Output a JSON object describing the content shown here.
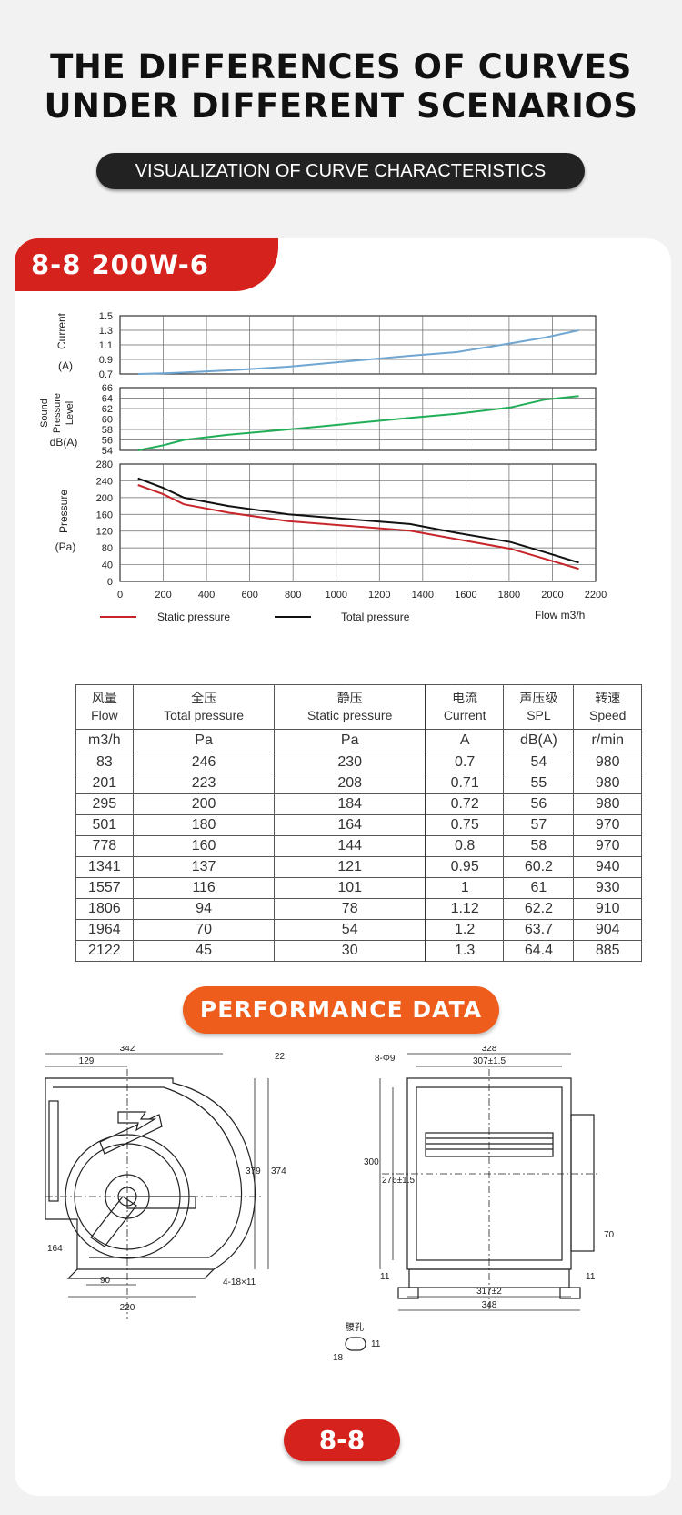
{
  "header": {
    "title_line1": "THE DIFFERENCES OF CURVES",
    "title_line2": "UNDER DIFFERENT SCENARIOS",
    "subtitle": "VISUALIZATION OF CURVE CHARACTERISTICS"
  },
  "card": {
    "model_tag": "8-8  200W-6",
    "performance_label": "PERFORMANCE DATA",
    "size_label": "8-8"
  },
  "chart_data": [
    {
      "type": "line",
      "ylabel": "Current (A)",
      "ylim": [
        0.7,
        1.5
      ],
      "yticks": [
        "1.5",
        "1.3",
        "1.1",
        "0.9",
        "0.7"
      ],
      "x": [
        83,
        201,
        295,
        501,
        778,
        1341,
        1557,
        1806,
        1964,
        2122
      ],
      "series": [
        {
          "name": "Current",
          "values": [
            0.7,
            0.71,
            0.72,
            0.75,
            0.8,
            0.95,
            1,
            1.12,
            1.2,
            1.3
          ],
          "color": "#6fa6d2"
        }
      ]
    },
    {
      "type": "line",
      "ylabel": "Sound Pressure Level dB(A)",
      "ylim": [
        54,
        66
      ],
      "yticks": [
        "66",
        "64",
        "62",
        "60",
        "58",
        "56",
        "54"
      ],
      "x": [
        83,
        201,
        295,
        501,
        778,
        1341,
        1557,
        1806,
        1964,
        2122
      ],
      "series": [
        {
          "name": "SPL",
          "values": [
            54,
            55,
            56,
            57,
            58,
            60.2,
            61,
            62.2,
            63.7,
            64.4
          ],
          "color": "#1fae57"
        }
      ]
    },
    {
      "type": "line",
      "ylabel": "Pressure (Pa)",
      "xlabel": "Flow m3/h",
      "ylim": [
        0,
        280
      ],
      "xlim": [
        0,
        2200
      ],
      "yticks": [
        "280",
        "240",
        "200",
        "160",
        "120",
        "80",
        "40",
        "0"
      ],
      "xticks": [
        "0",
        "200",
        "400",
        "600",
        "800",
        "1000",
        "1200",
        "1400",
        "1600",
        "1800",
        "2000",
        "2200"
      ],
      "x": [
        83,
        201,
        295,
        501,
        778,
        1341,
        1557,
        1806,
        1964,
        2122
      ],
      "series": [
        {
          "name": "Static pressure",
          "values": [
            230,
            208,
            184,
            164,
            144,
            121,
            101,
            78,
            54,
            30
          ],
          "color": "#c8252b"
        },
        {
          "name": "Total pressure",
          "values": [
            246,
            223,
            200,
            180,
            160,
            137,
            116,
            94,
            70,
            45
          ],
          "color": "#111111"
        }
      ]
    },
    {
      "type": "table",
      "headers": [
        {
          "cn": "风量",
          "en": "Flow"
        },
        {
          "cn": "全压",
          "en": "Total pressure"
        },
        {
          "cn": "静压",
          "en": "Static pressure"
        },
        {
          "cn": "电流",
          "en": "Current"
        },
        {
          "cn": "声压级",
          "en": "SPL"
        },
        {
          "cn": "转速",
          "en": "Speed"
        }
      ],
      "units": [
        "m3/h",
        "Pa",
        "Pa",
        "A",
        "dB(A)",
        "r/min"
      ],
      "rows": [
        [
          "83",
          "246",
          "230",
          "0.7",
          "54",
          "980"
        ],
        [
          "201",
          "223",
          "208",
          "0.71",
          "55",
          "980"
        ],
        [
          "295",
          "200",
          "184",
          "0.72",
          "56",
          "980"
        ],
        [
          "501",
          "180",
          "164",
          "0.75",
          "57",
          "970"
        ],
        [
          "778",
          "160",
          "144",
          "0.8",
          "58",
          "970"
        ],
        [
          "1341",
          "137",
          "121",
          "0.95",
          "60.2",
          "940"
        ],
        [
          "1557",
          "116",
          "101",
          "1",
          "61",
          "930"
        ],
        [
          "1806",
          "94",
          "78",
          "1.12",
          "62.2",
          "910"
        ],
        [
          "1964",
          "70",
          "54",
          "1.2",
          "63.7",
          "904"
        ],
        [
          "2122",
          "45",
          "30",
          "1.3",
          "64.4",
          "885"
        ]
      ]
    }
  ],
  "drawing": {
    "dims_side": [
      "342",
      "129",
      "22",
      "379",
      "374",
      "164",
      "90",
      "220",
      "4-18×11"
    ],
    "dims_front": [
      "328",
      "8-Φ9",
      "307±1.5",
      "300",
      "276±1.5",
      "70",
      "11",
      "11",
      "317±2",
      "348",
      "腰孔",
      "11",
      "18"
    ]
  }
}
